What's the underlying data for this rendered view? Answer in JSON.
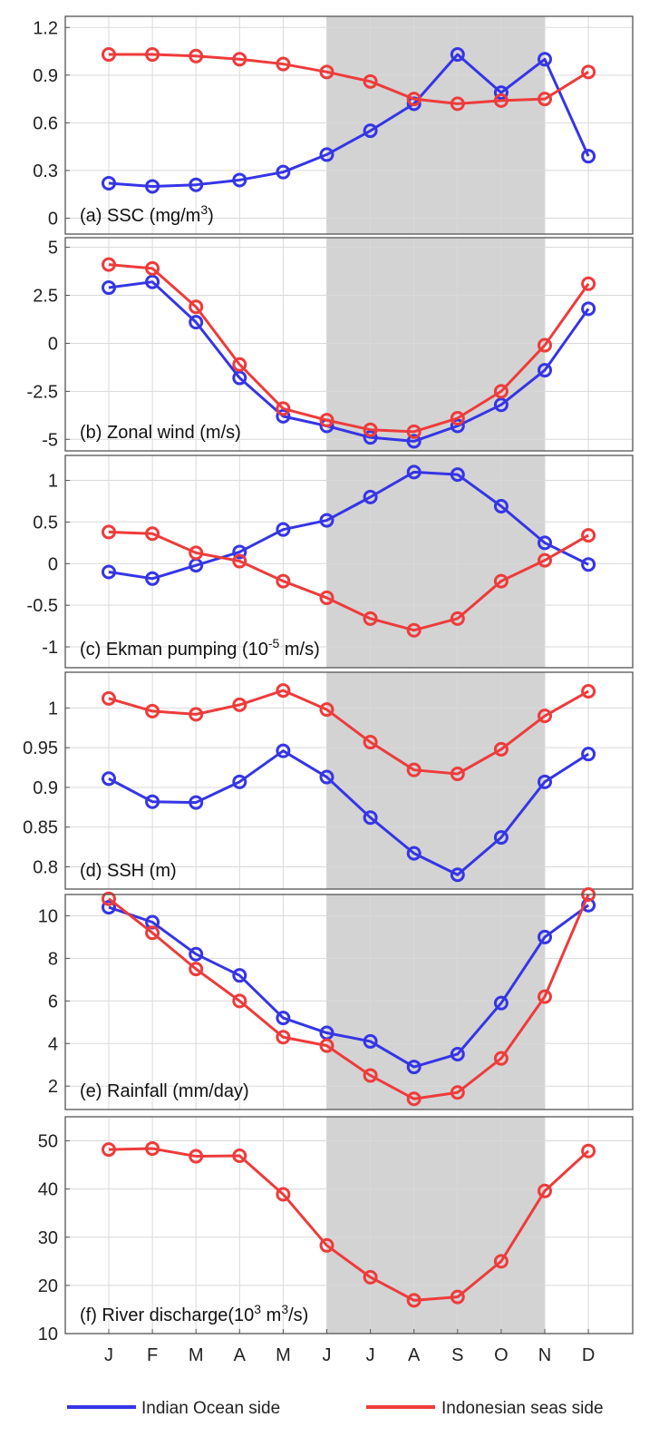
{
  "chart_data": {
    "type": "line",
    "months": [
      "J",
      "F",
      "M",
      "A",
      "M",
      "J",
      "J",
      "A",
      "S",
      "O",
      "N",
      "D"
    ],
    "shaded_months": {
      "from_index": 5,
      "to_index": 10
    },
    "series_colors": {
      "indian_ocean": "#3535e6",
      "indonesian": "#ee3b3b"
    },
    "shade_color": "#d3d3d3",
    "legend": [
      {
        "key": "indian_ocean",
        "label": "Indian Ocean side",
        "color": "#3535e6"
      },
      {
        "key": "indonesian",
        "label": "Indonesian seas side",
        "color": "#ee3b3b"
      }
    ],
    "panels": [
      {
        "id": "ssc",
        "label_prefix": "(a) SSC (mg/m",
        "label_sup": "3",
        "label_suffix": ")",
        "ylim": [
          -0.1,
          1.27
        ],
        "yticks": [
          0,
          0.3,
          0.6,
          0.9,
          1.2
        ],
        "ytick_labels": [
          "0",
          "0.3",
          "0.6",
          "0.9",
          "1.2"
        ],
        "series": [
          {
            "key": "indian_ocean",
            "name": "Indian Ocean side",
            "values": [
              0.22,
              0.2,
              0.21,
              0.24,
              0.29,
              0.4,
              0.55,
              0.72,
              1.03,
              0.79,
              1.0,
              0.39
            ]
          },
          {
            "key": "indonesian",
            "name": "Indonesian seas side",
            "values": [
              1.03,
              1.03,
              1.02,
              1.0,
              0.97,
              0.92,
              0.86,
              0.75,
              0.72,
              0.74,
              0.75,
              0.92
            ]
          }
        ]
      },
      {
        "id": "wind",
        "label_prefix": "(b) Zonal wind (m/s)",
        "label_sup": "",
        "label_suffix": "",
        "ylim": [
          -5.6,
          5.5
        ],
        "yticks": [
          -5,
          -2.5,
          0,
          2.5,
          5
        ],
        "ytick_labels": [
          "-5",
          "-2.5",
          "0",
          "2.5",
          "5"
        ],
        "series": [
          {
            "key": "indian_ocean",
            "name": "Indian Ocean side",
            "values": [
              2.9,
              3.2,
              1.1,
              -1.8,
              -3.8,
              -4.3,
              -4.9,
              -5.1,
              -4.3,
              -3.2,
              -1.4,
              1.8
            ]
          },
          {
            "key": "indonesian",
            "name": "Indonesian seas side",
            "values": [
              4.1,
              3.9,
              1.9,
              -1.1,
              -3.4,
              -4.0,
              -4.5,
              -4.6,
              -3.9,
              -2.5,
              -0.1,
              3.1
            ]
          }
        ]
      },
      {
        "id": "ekman",
        "label_prefix": "(c) Ekman  pumping (10",
        "label_sup": "-5",
        "label_suffix": " m/s)",
        "ylim": [
          -1.25,
          1.3
        ],
        "yticks": [
          -1,
          -0.5,
          0,
          0.5,
          1
        ],
        "ytick_labels": [
          "-1",
          "-0.5",
          "0",
          "0.5",
          "1"
        ],
        "series": [
          {
            "key": "indian_ocean",
            "name": "Indian Ocean side",
            "values": [
              -0.1,
              -0.18,
              -0.02,
              0.14,
              0.41,
              0.52,
              0.8,
              1.1,
              1.07,
              0.69,
              0.25,
              -0.01
            ]
          },
          {
            "key": "indonesian",
            "name": "Indonesian seas side",
            "values": [
              0.38,
              0.36,
              0.13,
              0.03,
              -0.21,
              -0.41,
              -0.66,
              -0.8,
              -0.66,
              -0.21,
              0.04,
              0.34
            ]
          }
        ]
      },
      {
        "id": "ssh",
        "label_prefix": "(d) SSH (m)",
        "label_sup": "",
        "label_suffix": "",
        "ylim": [
          0.772,
          1.045
        ],
        "yticks": [
          0.8,
          0.85,
          0.9,
          0.95,
          1
        ],
        "ytick_labels": [
          "0.8",
          "0.85",
          "0.9",
          "0.95",
          "1"
        ],
        "series": [
          {
            "key": "indian_ocean",
            "name": "Indian Ocean side",
            "values": [
              0.911,
              0.882,
              0.881,
              0.907,
              0.946,
              0.913,
              0.862,
              0.817,
              0.79,
              0.837,
              0.907,
              0.942
            ]
          },
          {
            "key": "indonesian",
            "name": "Indonesian seas side",
            "values": [
              1.012,
              0.996,
              0.992,
              1.004,
              1.022,
              0.998,
              0.957,
              0.922,
              0.917,
              0.948,
              0.99,
              1.021
            ]
          }
        ]
      },
      {
        "id": "rain",
        "label_prefix": "(e) Rainfall (mm/day)",
        "label_sup": "",
        "label_suffix": "",
        "ylim": [
          0.9,
          11.0
        ],
        "yticks": [
          2,
          4,
          6,
          8,
          10
        ],
        "ytick_labels": [
          "2",
          "4",
          "6",
          "8",
          "10"
        ],
        "series": [
          {
            "key": "indian_ocean",
            "name": "Indian Ocean side",
            "values": [
              10.4,
              9.7,
              8.2,
              7.2,
              5.2,
              4.5,
              4.1,
              2.9,
              3.5,
              5.9,
              9.0,
              10.5
            ]
          },
          {
            "key": "indonesian",
            "name": "Indonesian seas side",
            "values": [
              10.8,
              9.2,
              7.5,
              6.0,
              4.3,
              3.9,
              2.5,
              1.4,
              1.7,
              3.3,
              6.2,
              11.0
            ]
          }
        ]
      },
      {
        "id": "river",
        "label_prefix": "(f) River discharge(10",
        "label_sup": "3",
        "label_suffix": " m",
        "label_sup2": "3",
        "label_suffix2": "/s)",
        "ylim": [
          10,
          55
        ],
        "yticks": [
          10,
          20,
          30,
          40,
          50
        ],
        "ytick_labels": [
          "10",
          "20",
          "30",
          "40",
          "50"
        ],
        "series": [
          {
            "key": "indonesian",
            "name": "Indonesian seas side",
            "values": [
              48.2,
              48.4,
              46.8,
              46.9,
              38.9,
              28.3,
              21.7,
              16.9,
              17.6,
              25.0,
              39.6,
              47.9
            ]
          }
        ]
      }
    ]
  }
}
